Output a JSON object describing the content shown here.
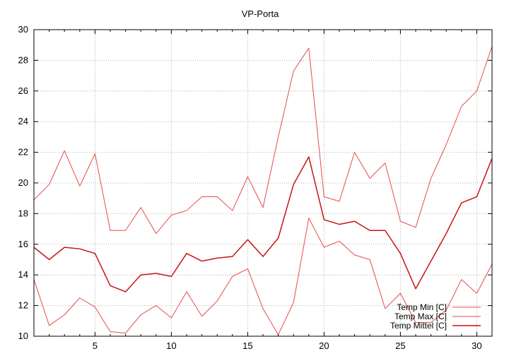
{
  "chart_data": {
    "type": "line",
    "title": "VP-Porta",
    "xlabel": "",
    "ylabel": "",
    "xlim": [
      1,
      31
    ],
    "ylim": [
      10,
      30
    ],
    "xticks": [
      5,
      10,
      15,
      20,
      25,
      30
    ],
    "yticks": [
      10,
      12,
      14,
      16,
      18,
      20,
      22,
      24,
      26,
      28,
      30
    ],
    "grid": true,
    "legend_position": "bottom-right",
    "x": [
      1,
      2,
      3,
      4,
      5,
      6,
      7,
      8,
      9,
      10,
      11,
      12,
      13,
      14,
      15,
      16,
      17,
      18,
      19,
      20,
      21,
      22,
      23,
      24,
      25,
      26,
      27,
      28,
      29,
      30,
      31
    ],
    "series": [
      {
        "name": "Temp Min [C]",
        "color": "#e84a4a",
        "values": [
          13.7,
          10.7,
          11.4,
          12.5,
          11.9,
          10.3,
          10.2,
          11.4,
          12.0,
          11.2,
          12.9,
          11.3,
          12.3,
          13.9,
          14.4,
          11.8,
          10.1,
          12.2,
          17.7,
          15.8,
          16.2,
          15.3,
          15.0,
          11.8,
          12.8,
          10.9,
          10.9,
          11.7,
          13.7,
          12.8,
          14.7
        ]
      },
      {
        "name": "Temp Max [C]",
        "color": "#e84a4a",
        "values": [
          18.9,
          19.9,
          22.1,
          19.8,
          21.9,
          16.9,
          16.9,
          18.4,
          16.7,
          17.9,
          18.2,
          19.1,
          19.1,
          18.2,
          20.4,
          18.4,
          23.0,
          27.3,
          28.8,
          19.1,
          18.8,
          22.0,
          20.3,
          21.3,
          17.5,
          17.1,
          20.3,
          22.5,
          25.0,
          26.0,
          28.9
        ]
      },
      {
        "name": "Temp Mittel [C]",
        "color": "#c81414",
        "values": [
          15.8,
          15.0,
          15.8,
          15.7,
          15.4,
          13.3,
          12.9,
          14.0,
          14.1,
          13.9,
          15.4,
          14.9,
          15.1,
          15.2,
          16.3,
          15.2,
          16.4,
          19.9,
          21.7,
          17.6,
          17.3,
          17.5,
          16.9,
          16.9,
          15.4,
          13.1,
          14.9,
          16.7,
          18.7,
          19.1,
          21.6
        ]
      }
    ]
  }
}
